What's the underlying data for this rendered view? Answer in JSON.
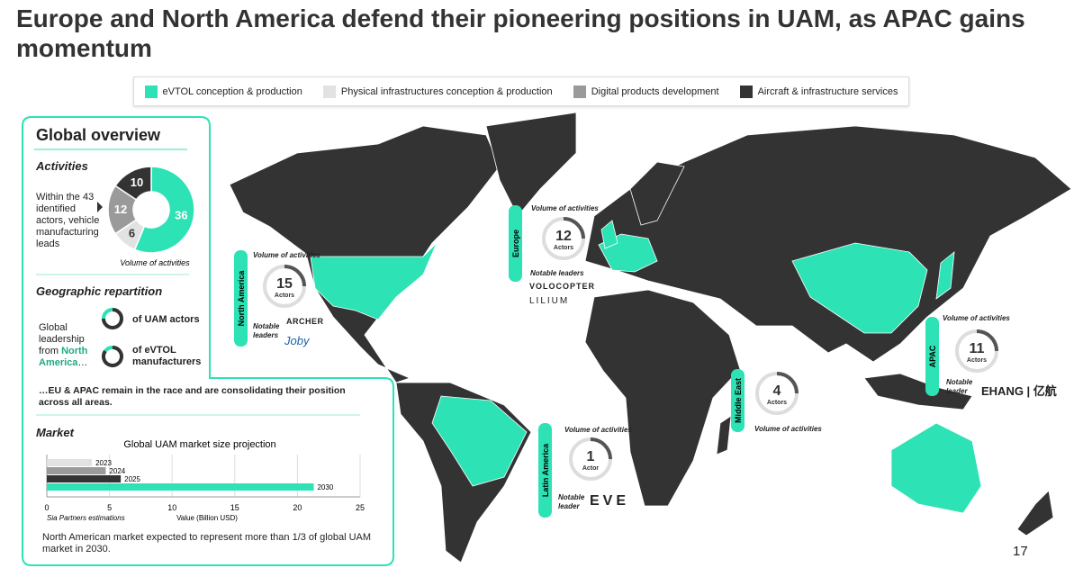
{
  "title": "Europe and North America defend their pioneering positions in UAM, as APAC gains momentum",
  "legend": [
    {
      "label": "eVTOL conception & production",
      "color": "#2de2b4"
    },
    {
      "label": "Physical infrastructures conception & production",
      "color": "#e2e2e2"
    },
    {
      "label": "Digital products development",
      "color": "#9a9a9a"
    },
    {
      "label": "Aircraft & infrastructure services",
      "color": "#333333"
    }
  ],
  "overview": {
    "heading": "Global overview",
    "activities_heading": "Activities",
    "activities_text": "Within the 43 identified actors, vehicle manufacturing leads",
    "geo_heading": "Geographic repartition",
    "geo_text_parts": [
      "Global leadership from ",
      "North America",
      "…"
    ],
    "geo_items": [
      "of UAM actors",
      "of eVTOL manufacturers"
    ],
    "geo_note": "…EU & APAC remain in the race and are consolidating their position across all areas.",
    "market_heading": "Market",
    "market_note": "North American market expected to represent more than 1/3 of global UAM market in 2030."
  },
  "chart_data": [
    {
      "type": "pie",
      "label": "Volume of activities",
      "values": [
        36,
        6,
        12,
        10
      ],
      "colors": [
        "#2de2b4",
        "#e2e2e2",
        "#9a9a9a",
        "#333333"
      ]
    },
    {
      "type": "bar",
      "title": "Global UAM market size projection",
      "categories": [
        "2023",
        "2024",
        "2025",
        "2030"
      ],
      "values": [
        3.6,
        4.7,
        5.9,
        21.3
      ],
      "colors": [
        "#e2e2e2",
        "#9a9a9a",
        "#333333",
        "#2de2b4"
      ],
      "xlim": [
        0,
        25
      ],
      "xticks": [
        0,
        5,
        10,
        15,
        20,
        25
      ],
      "xlabel": "Value (Billion USD)",
      "source": "Sia Partners estimations",
      "grid": true
    }
  ],
  "regions": [
    {
      "name": "North America",
      "volume_label": "Volume of activities",
      "count": 15,
      "unit": "Actors",
      "leaders_label": "Notable leaders",
      "leaders": [
        "ARCHER",
        "Joby"
      ]
    },
    {
      "name": "Europe",
      "volume_label": "Volume of activities",
      "count": 12,
      "unit": "Actors",
      "leaders_label": "Notable leaders",
      "leaders": [
        "VOLOCOPTER",
        "LILIUM"
      ]
    },
    {
      "name": "APAC",
      "volume_label": "Volume of activities",
      "count": 11,
      "unit": "Actors",
      "leaders_label": "Notable leader",
      "leaders": [
        "EHANG | 亿航"
      ]
    },
    {
      "name": "Middle East",
      "volume_label": "Volume of activities",
      "count": 4,
      "unit": "Actors"
    },
    {
      "name": "Latin America",
      "volume_label": "Volume of activities",
      "count": 1,
      "unit": "Actor",
      "leaders_label": "Notable leader",
      "leaders": [
        "EVE"
      ]
    }
  ],
  "page_number": "17"
}
